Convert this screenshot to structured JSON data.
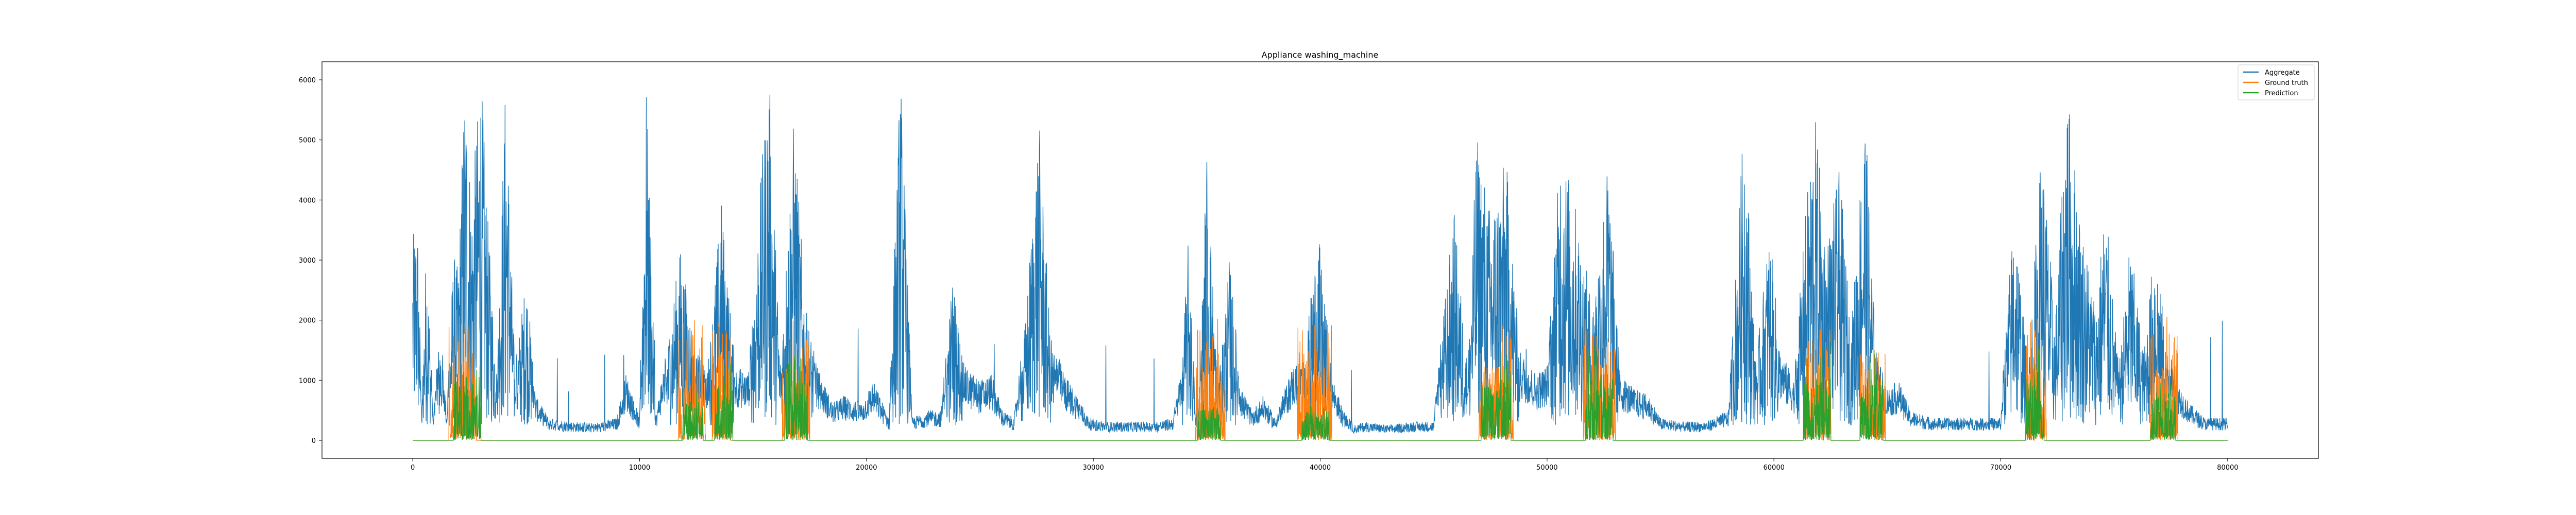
{
  "chart_data": {
    "type": "line",
    "title": "Appliance washing_machine",
    "xlabel": "",
    "ylabel": "",
    "xlim": [
      -4000,
      84000
    ],
    "ylim": [
      -300,
      6300
    ],
    "x_ticks": [
      0,
      10000,
      20000,
      30000,
      40000,
      50000,
      60000,
      70000,
      80000
    ],
    "y_ticks": [
      0,
      1000,
      2000,
      3000,
      4000,
      5000,
      6000
    ],
    "grid": false,
    "legend_position": "top-right",
    "colors": {
      "aggregate": "#1f77b4",
      "ground_truth": "#ff7f0e",
      "prediction": "#2ca02c"
    },
    "series": [
      {
        "name": "Aggregate",
        "color": "#1f77b4",
        "profile": [
          [
            0,
            3100
          ],
          [
            200,
            3650
          ],
          [
            400,
            300
          ],
          [
            600,
            3200
          ],
          [
            900,
            250
          ],
          [
            1200,
            1600
          ],
          [
            1500,
            350
          ],
          [
            1800,
            2900
          ],
          [
            2000,
            2600
          ],
          [
            2300,
            6000
          ],
          [
            2600,
            3800
          ],
          [
            3000,
            6000
          ],
          [
            3300,
            3500
          ],
          [
            3700,
            900
          ],
          [
            4100,
            5950
          ],
          [
            4500,
            900
          ],
          [
            5000,
            2550
          ],
          [
            5400,
            600
          ],
          [
            6000,
            300
          ],
          [
            7000,
            250
          ],
          [
            8000,
            230
          ],
          [
            9000,
            300
          ],
          [
            9400,
            900
          ],
          [
            10000,
            300
          ],
          [
            10300,
            5750
          ],
          [
            10700,
            300
          ],
          [
            11200,
            1300
          ],
          [
            11800,
            3000
          ],
          [
            12500,
            1200
          ],
          [
            13000,
            900
          ],
          [
            13600,
            3800
          ],
          [
            14200,
            1000
          ],
          [
            14800,
            900
          ],
          [
            15300,
            3900
          ],
          [
            15700,
            6000
          ],
          [
            16200,
            1000
          ],
          [
            16800,
            5200
          ],
          [
            17300,
            2000
          ],
          [
            17800,
            1000
          ],
          [
            18500,
            500
          ],
          [
            19000,
            600
          ],
          [
            19800,
            500
          ],
          [
            20300,
            800
          ],
          [
            21000,
            300
          ],
          [
            21500,
            6000
          ],
          [
            22000,
            300
          ],
          [
            22700,
            400
          ],
          [
            23300,
            400
          ],
          [
            23800,
            2500
          ],
          [
            24300,
            1000
          ],
          [
            25000,
            800
          ],
          [
            25500,
            900
          ],
          [
            26000,
            400
          ],
          [
            26500,
            300
          ],
          [
            27000,
            1700
          ],
          [
            27600,
            5200
          ],
          [
            28100,
            1500
          ],
          [
            28700,
            900
          ],
          [
            29300,
            600
          ],
          [
            29800,
            300
          ],
          [
            30500,
            250
          ],
          [
            31200,
            250
          ],
          [
            32000,
            250
          ],
          [
            32800,
            250
          ],
          [
            33500,
            300
          ],
          [
            33900,
            1000
          ],
          [
            34200,
            3200
          ],
          [
            34500,
            300
          ],
          [
            34700,
            800
          ],
          [
            35000,
            4700
          ],
          [
            35500,
            600
          ],
          [
            36000,
            2800
          ],
          [
            36500,
            700
          ],
          [
            37000,
            400
          ],
          [
            37500,
            600
          ],
          [
            38000,
            300
          ],
          [
            38800,
            1000
          ],
          [
            39300,
            1100
          ],
          [
            39900,
            3300
          ],
          [
            40500,
            900
          ],
          [
            41000,
            400
          ],
          [
            41500,
            200
          ],
          [
            42000,
            250
          ],
          [
            43000,
            200
          ],
          [
            44000,
            250
          ],
          [
            45000,
            250
          ],
          [
            45900,
            3600
          ],
          [
            46500,
            900
          ],
          [
            46900,
            4900
          ],
          [
            47500,
            3600
          ],
          [
            48200,
            4500
          ],
          [
            48800,
            1200
          ],
          [
            49500,
            900
          ],
          [
            50000,
            1000
          ],
          [
            50600,
            4800
          ],
          [
            51300,
            3600
          ],
          [
            52000,
            2000
          ],
          [
            52700,
            4500
          ],
          [
            53200,
            900
          ],
          [
            53800,
            700
          ],
          [
            54500,
            600
          ],
          [
            55000,
            300
          ],
          [
            56000,
            250
          ],
          [
            57000,
            250
          ],
          [
            58000,
            400
          ],
          [
            58700,
            5300
          ],
          [
            59200,
            1000
          ],
          [
            59800,
            3300
          ],
          [
            60300,
            1200
          ],
          [
            60900,
            800
          ],
          [
            61400,
            3600
          ],
          [
            61800,
            5250
          ],
          [
            62300,
            3000
          ],
          [
            62900,
            4300
          ],
          [
            63400,
            1500
          ],
          [
            64000,
            5400
          ],
          [
            64500,
            1200
          ],
          [
            65000,
            700
          ],
          [
            65500,
            800
          ],
          [
            66000,
            400
          ],
          [
            67000,
            300
          ],
          [
            68000,
            300
          ],
          [
            69000,
            300
          ],
          [
            70000,
            300
          ],
          [
            70600,
            3800
          ],
          [
            71200,
            800
          ],
          [
            71800,
            4800
          ],
          [
            72400,
            1700
          ],
          [
            72900,
            5800
          ],
          [
            73500,
            3500
          ],
          [
            74200,
            2000
          ],
          [
            74600,
            3800
          ],
          [
            75200,
            900
          ],
          [
            75700,
            3100
          ],
          [
            76300,
            1200
          ],
          [
            76800,
            3200
          ],
          [
            77300,
            1300
          ],
          [
            77800,
            800
          ],
          [
            78300,
            500
          ],
          [
            79000,
            300
          ],
          [
            79600,
            300
          ],
          [
            80000,
            300
          ]
        ]
      },
      {
        "name": "Ground truth",
        "color": "#ff7f0e",
        "bursts": [
          [
            1600,
            2800,
            2100
          ],
          [
            11700,
            12900,
            2000
          ],
          [
            13200,
            14000,
            2100
          ],
          [
            16300,
            17500,
            2100
          ],
          [
            34500,
            35800,
            2100
          ],
          [
            39000,
            40500,
            2100
          ],
          [
            47000,
            48500,
            2100
          ],
          [
            51600,
            53000,
            2200
          ],
          [
            61300,
            62500,
            2000
          ],
          [
            63800,
            64900,
            2000
          ],
          [
            71100,
            72000,
            2100
          ],
          [
            76600,
            77800,
            2100
          ]
        ]
      },
      {
        "name": "Prediction",
        "color": "#2ca02c",
        "bursts": [
          [
            1800,
            3000,
            1300
          ],
          [
            11900,
            12800,
            900
          ],
          [
            13300,
            14100,
            1500
          ],
          [
            16400,
            17400,
            1700
          ],
          [
            34600,
            35600,
            700
          ],
          [
            39200,
            40400,
            600
          ],
          [
            47100,
            48400,
            1650
          ],
          [
            51700,
            52900,
            1600
          ],
          [
            61300,
            62500,
            1700
          ],
          [
            63800,
            64800,
            1500
          ],
          [
            71100,
            71900,
            1700
          ],
          [
            76600,
            77700,
            1000
          ]
        ]
      }
    ]
  }
}
